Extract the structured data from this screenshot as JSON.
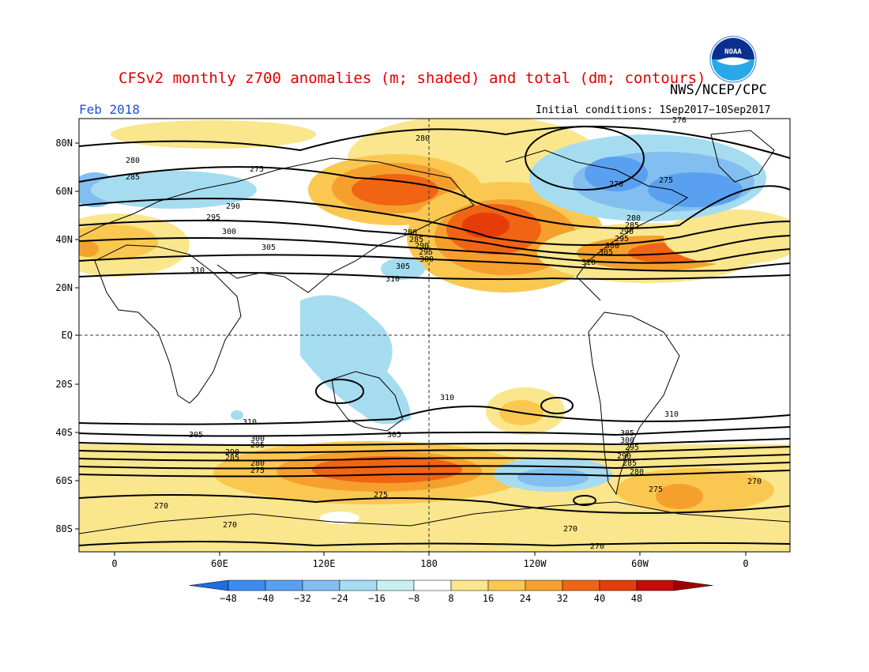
{
  "header": {
    "title": "CFSv2 monthly z700 anomalies (m; shaded) and total (dm; contours)",
    "agency": "NWS/NCEP/CPC",
    "valid_month": "Feb 2018",
    "initial_conditions": "Initial conditions: 1Sep2017−10Sep2017",
    "logo_text": "NOAA",
    "logo_icon": "noaa-logo-icon"
  },
  "map": {
    "lat_labels": [
      "80N",
      "60N",
      "40N",
      "20N",
      "EQ",
      "20S",
      "40S",
      "60S",
      "80S"
    ],
    "lon_labels": [
      "0",
      "60E",
      "120E",
      "180",
      "120W",
      "60W",
      "0"
    ],
    "contour_labels": [
      {
        "text": "280"
      },
      {
        "text": "275"
      },
      {
        "text": "280"
      },
      {
        "text": "285"
      },
      {
        "text": "290"
      },
      {
        "text": "295"
      },
      {
        "text": "300"
      },
      {
        "text": "305"
      },
      {
        "text": "310"
      },
      {
        "text": "310"
      },
      {
        "text": "280"
      },
      {
        "text": "285"
      },
      {
        "text": "290"
      },
      {
        "text": "295"
      },
      {
        "text": "300"
      },
      {
        "text": "305"
      },
      {
        "text": "270"
      },
      {
        "text": "275"
      },
      {
        "text": "280"
      },
      {
        "text": "285"
      },
      {
        "text": "290"
      },
      {
        "text": "295"
      },
      {
        "text": "300"
      },
      {
        "text": "305"
      },
      {
        "text": "310"
      },
      {
        "text": "276"
      },
      {
        "text": "310"
      },
      {
        "text": "310"
      },
      {
        "text": "310"
      },
      {
        "text": "305"
      },
      {
        "text": "305"
      },
      {
        "text": "300"
      },
      {
        "text": "295"
      },
      {
        "text": "290"
      },
      {
        "text": "285"
      },
      {
        "text": "280"
      },
      {
        "text": "275"
      },
      {
        "text": "305"
      },
      {
        "text": "300"
      },
      {
        "text": "295"
      },
      {
        "text": "290"
      },
      {
        "text": "285"
      },
      {
        "text": "280"
      },
      {
        "text": "275"
      },
      {
        "text": "270"
      },
      {
        "text": "270"
      },
      {
        "text": "275"
      },
      {
        "text": "270"
      },
      {
        "text": "270"
      },
      {
        "text": "270"
      }
    ]
  },
  "colorbar": {
    "tick_labels": [
      "−48",
      "−40",
      "−32",
      "−24",
      "−16",
      "−8",
      "8",
      "16",
      "24",
      "32",
      "40",
      "48"
    ],
    "colors": [
      "#1e6ee0",
      "#3c8cf0",
      "#5aa0f0",
      "#82bef0",
      "#a6dcf0",
      "#c8f0f0",
      "#ffffff",
      "#fae68c",
      "#fac850",
      "#f5a02d",
      "#f06414",
      "#e63c0a",
      "#c80a0a",
      "#a00000"
    ]
  }
}
